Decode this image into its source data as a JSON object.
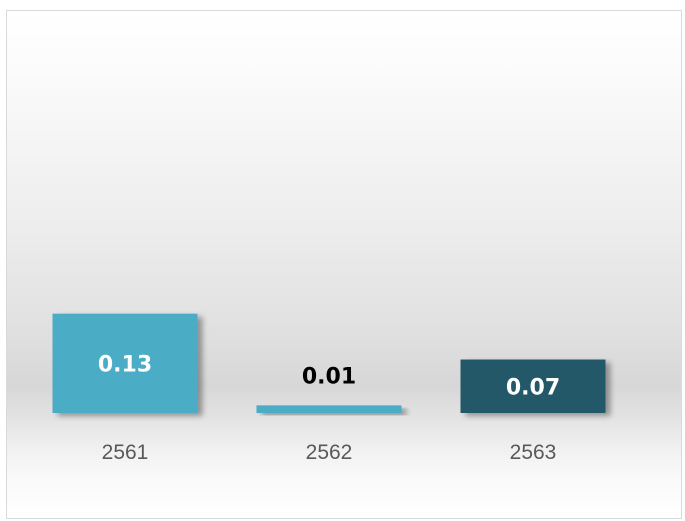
{
  "chart_data": {
    "type": "bar",
    "title": "",
    "xlabel": "",
    "ylabel": "",
    "categories": [
      "2561",
      "2562",
      "2563"
    ],
    "values": [
      0.13,
      0.01,
      0.07
    ],
    "data_labels": [
      "0.13",
      "0.01",
      "0.07"
    ],
    "ylim": [
      0,
      0.5
    ],
    "grid": false,
    "legend": "none",
    "colors": {
      "bars": [
        "#4bacc6",
        "#4bacc6",
        "#215968"
      ],
      "data_label_text": [
        "#ffffff",
        "#000000",
        "#ffffff"
      ],
      "tick_text": "#595959"
    }
  }
}
